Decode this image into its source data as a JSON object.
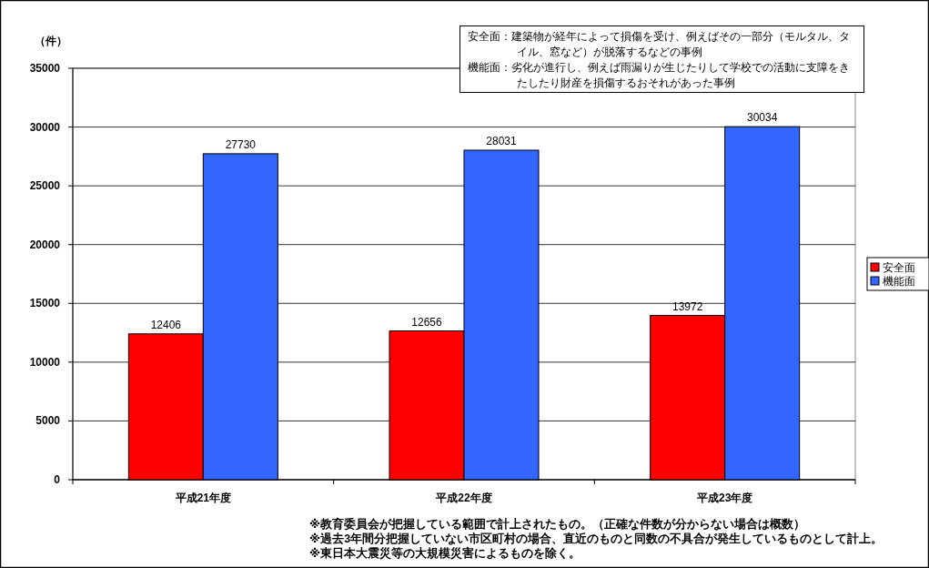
{
  "chart_data": {
    "type": "bar",
    "ylabel": "（件）",
    "categories": [
      "平成21年度",
      "平成22年度",
      "平成23年度"
    ],
    "series": [
      {
        "name": "安全面",
        "color": "#ff0000",
        "values": [
          12406,
          12656,
          13972
        ]
      },
      {
        "name": "機能面",
        "color": "#3366ff",
        "values": [
          27730,
          28031,
          30034
        ]
      }
    ],
    "ylim": [
      0,
      35000
    ],
    "yticks": [
      0,
      5000,
      10000,
      15000,
      20000,
      25000,
      30000,
      35000
    ],
    "grid": "y",
    "legend": "right",
    "data_labels": true,
    "annotations": [
      "安全面：建築物が経年によって損傷を受け、例えばその一部分（モルタル、タイル、窓など）が脱落するなどの事例",
      "機能面：劣化が進行し、例えば雨漏りが生じたりして学校での活動に支障をきたしたり財産を損傷するおそれがあった事例",
      "※教育委員会が把握している範囲で計上されたもの。（正確な件数が分からない場合は概数）",
      "※過去3年間分把握していない市区町村の場合、直近のものと同数の不具合が発生しているものとして計上。",
      "※東日本大震災等の大規模災害によるものを除く。"
    ]
  }
}
